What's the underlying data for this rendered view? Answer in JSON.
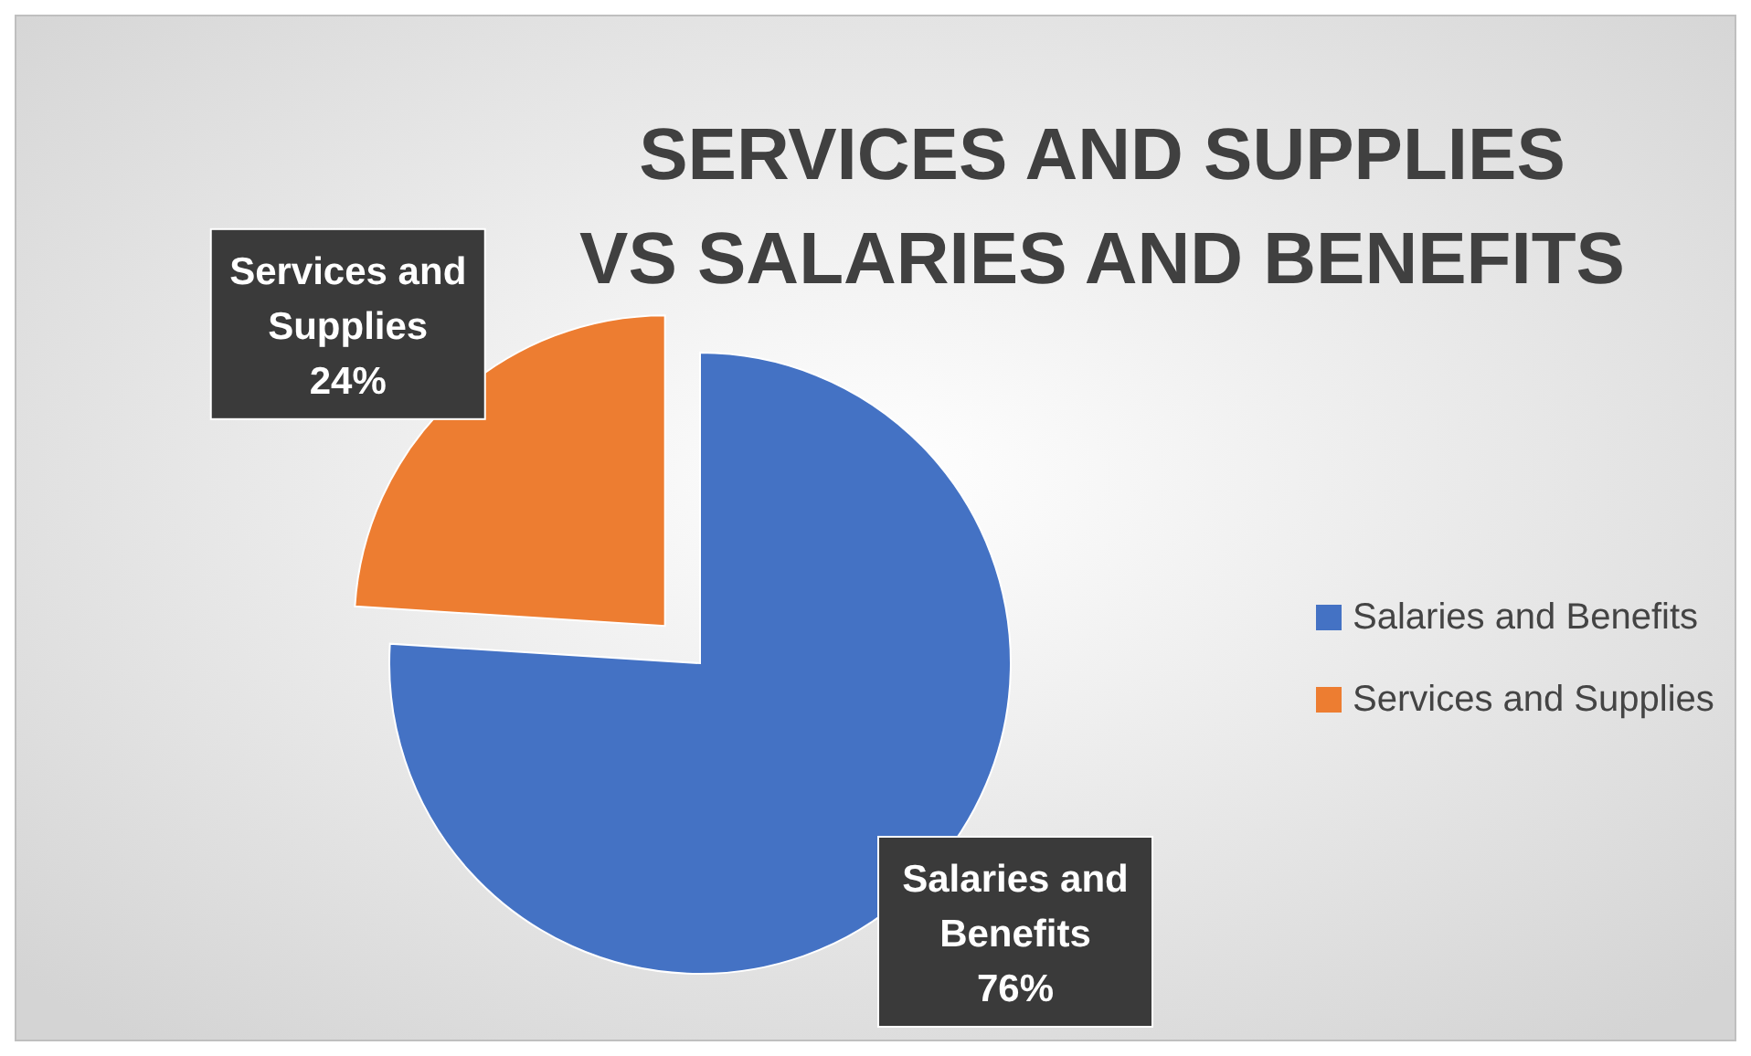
{
  "chart_data": {
    "type": "pie",
    "title": "SERVICES AND SUPPLIES VS SALARIES AND BENEFITS",
    "categories": [
      "Salaries and Benefits",
      "Services and Supplies"
    ],
    "values": [
      76,
      24
    ],
    "value_labels": [
      "76%",
      "24%"
    ],
    "colors": [
      "#4472c4",
      "#ed7d31"
    ],
    "legend": "right"
  }
}
